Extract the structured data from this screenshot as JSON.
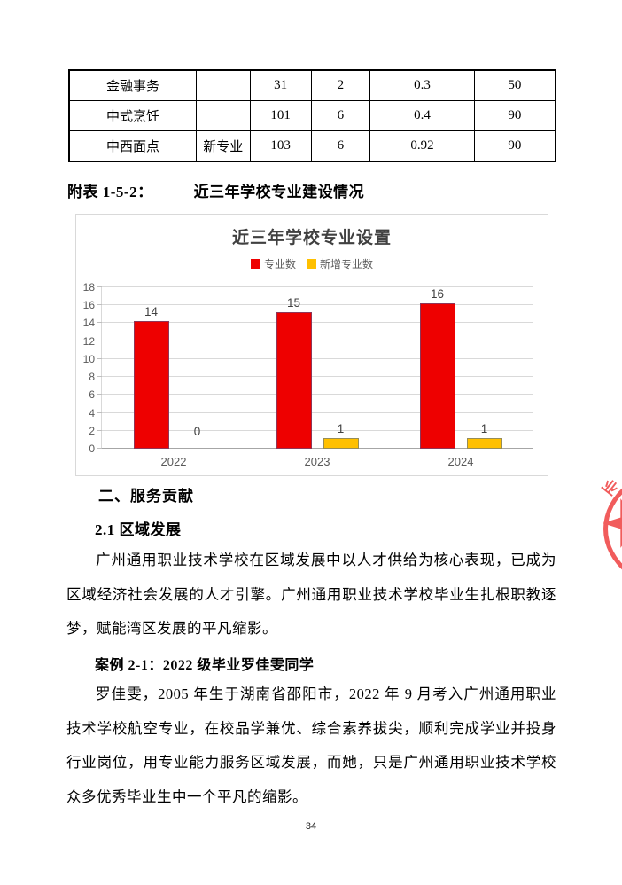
{
  "table": {
    "rows": [
      {
        "cells": [
          "金融事务",
          "",
          "31",
          "2",
          "0.3",
          "50"
        ]
      },
      {
        "cells": [
          "中式烹饪",
          "",
          "101",
          "6",
          "0.4",
          "90"
        ]
      },
      {
        "cells": [
          "中西面点",
          "新专业",
          "103",
          "6",
          "0.92",
          "90"
        ]
      }
    ]
  },
  "caption": {
    "label": "附表 1-5-2：",
    "title": "近三年学校专业建设情况"
  },
  "chart_data": {
    "type": "bar",
    "title": "近三年学校专业设置",
    "categories": [
      "2022",
      "2023",
      "2024"
    ],
    "series": [
      {
        "name": "专业数",
        "color": "#ee0000",
        "values": [
          14,
          15,
          16
        ]
      },
      {
        "name": "新增专业数",
        "color": "#ffc000",
        "values": [
          0,
          1,
          1
        ]
      }
    ],
    "ylim": [
      0,
      18
    ],
    "yticks": [
      0,
      2,
      4,
      6,
      8,
      10,
      12,
      14,
      16,
      18
    ],
    "grid": true,
    "legend_position": "top",
    "data_labels": true,
    "xlabel": "",
    "ylabel": ""
  },
  "body": {
    "section_heading": "二、服务贡献",
    "subsection_heading": "2.1 区域发展",
    "paragraph": "广州通用职业技术学校在区域发展中以人才供给为核心表现，已成为区域经济社会发展的人才引擎。广州通用职业技术学校毕业生扎根职教逐梦，赋能湾区发展的平凡缩影。",
    "case_heading": "案例 2-1：2022 级毕业罗佳雯同学",
    "case_paragraph": "罗佳雯，2005 年生于湖南省邵阳市，2022 年 9 月考入广州通用职业技术学校航空专业，在校品学兼优、综合素养拔尖，顺利完成学业并投身行业岗位，用专业能力服务区域发展，而她，只是广州通用职业技术学校众多优秀毕业生中一个平凡的缩影。"
  },
  "stamp": {
    "text": "业",
    "color": "#f15c5c"
  },
  "page": {
    "number": "34"
  }
}
